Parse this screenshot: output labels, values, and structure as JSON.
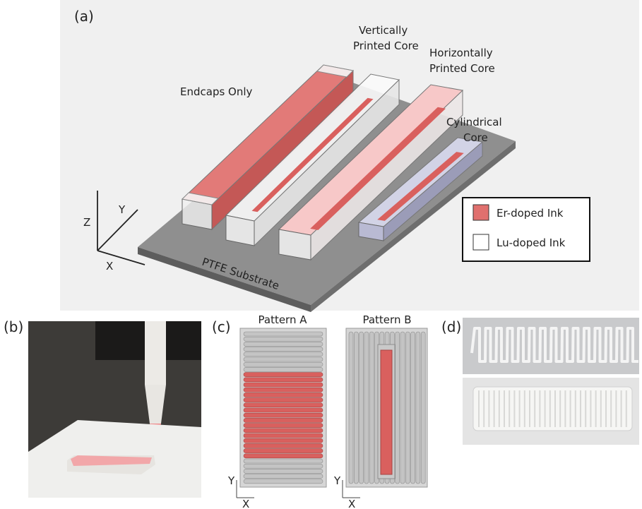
{
  "panel_a": {
    "label": "(a)",
    "annotations": {
      "endcaps": "Endcaps Only",
      "vertical": [
        "Vertically",
        "Printed Core"
      ],
      "horizontal": [
        "Horizontally",
        "Printed Core"
      ],
      "cylindrical": [
        "Cylindrical",
        "Core"
      ],
      "substrate": "PTFE Substrate"
    },
    "axes": {
      "z": "Z",
      "y": "Y",
      "x": "X"
    },
    "legend": [
      {
        "name": "Er-doped Ink",
        "color": "#e0706e"
      },
      {
        "name": "Lu-doped Ink",
        "color": "#ffffff"
      }
    ]
  },
  "panel_b": {
    "label": "(b)"
  },
  "panel_c": {
    "label": "(c)",
    "patterns": [
      {
        "title": "Pattern A",
        "y_axis": "Y",
        "x_axis": "X"
      },
      {
        "title": "Pattern B",
        "y_axis": "Y",
        "x_axis": "X"
      }
    ]
  },
  "panel_d": {
    "label": "(d)"
  }
}
